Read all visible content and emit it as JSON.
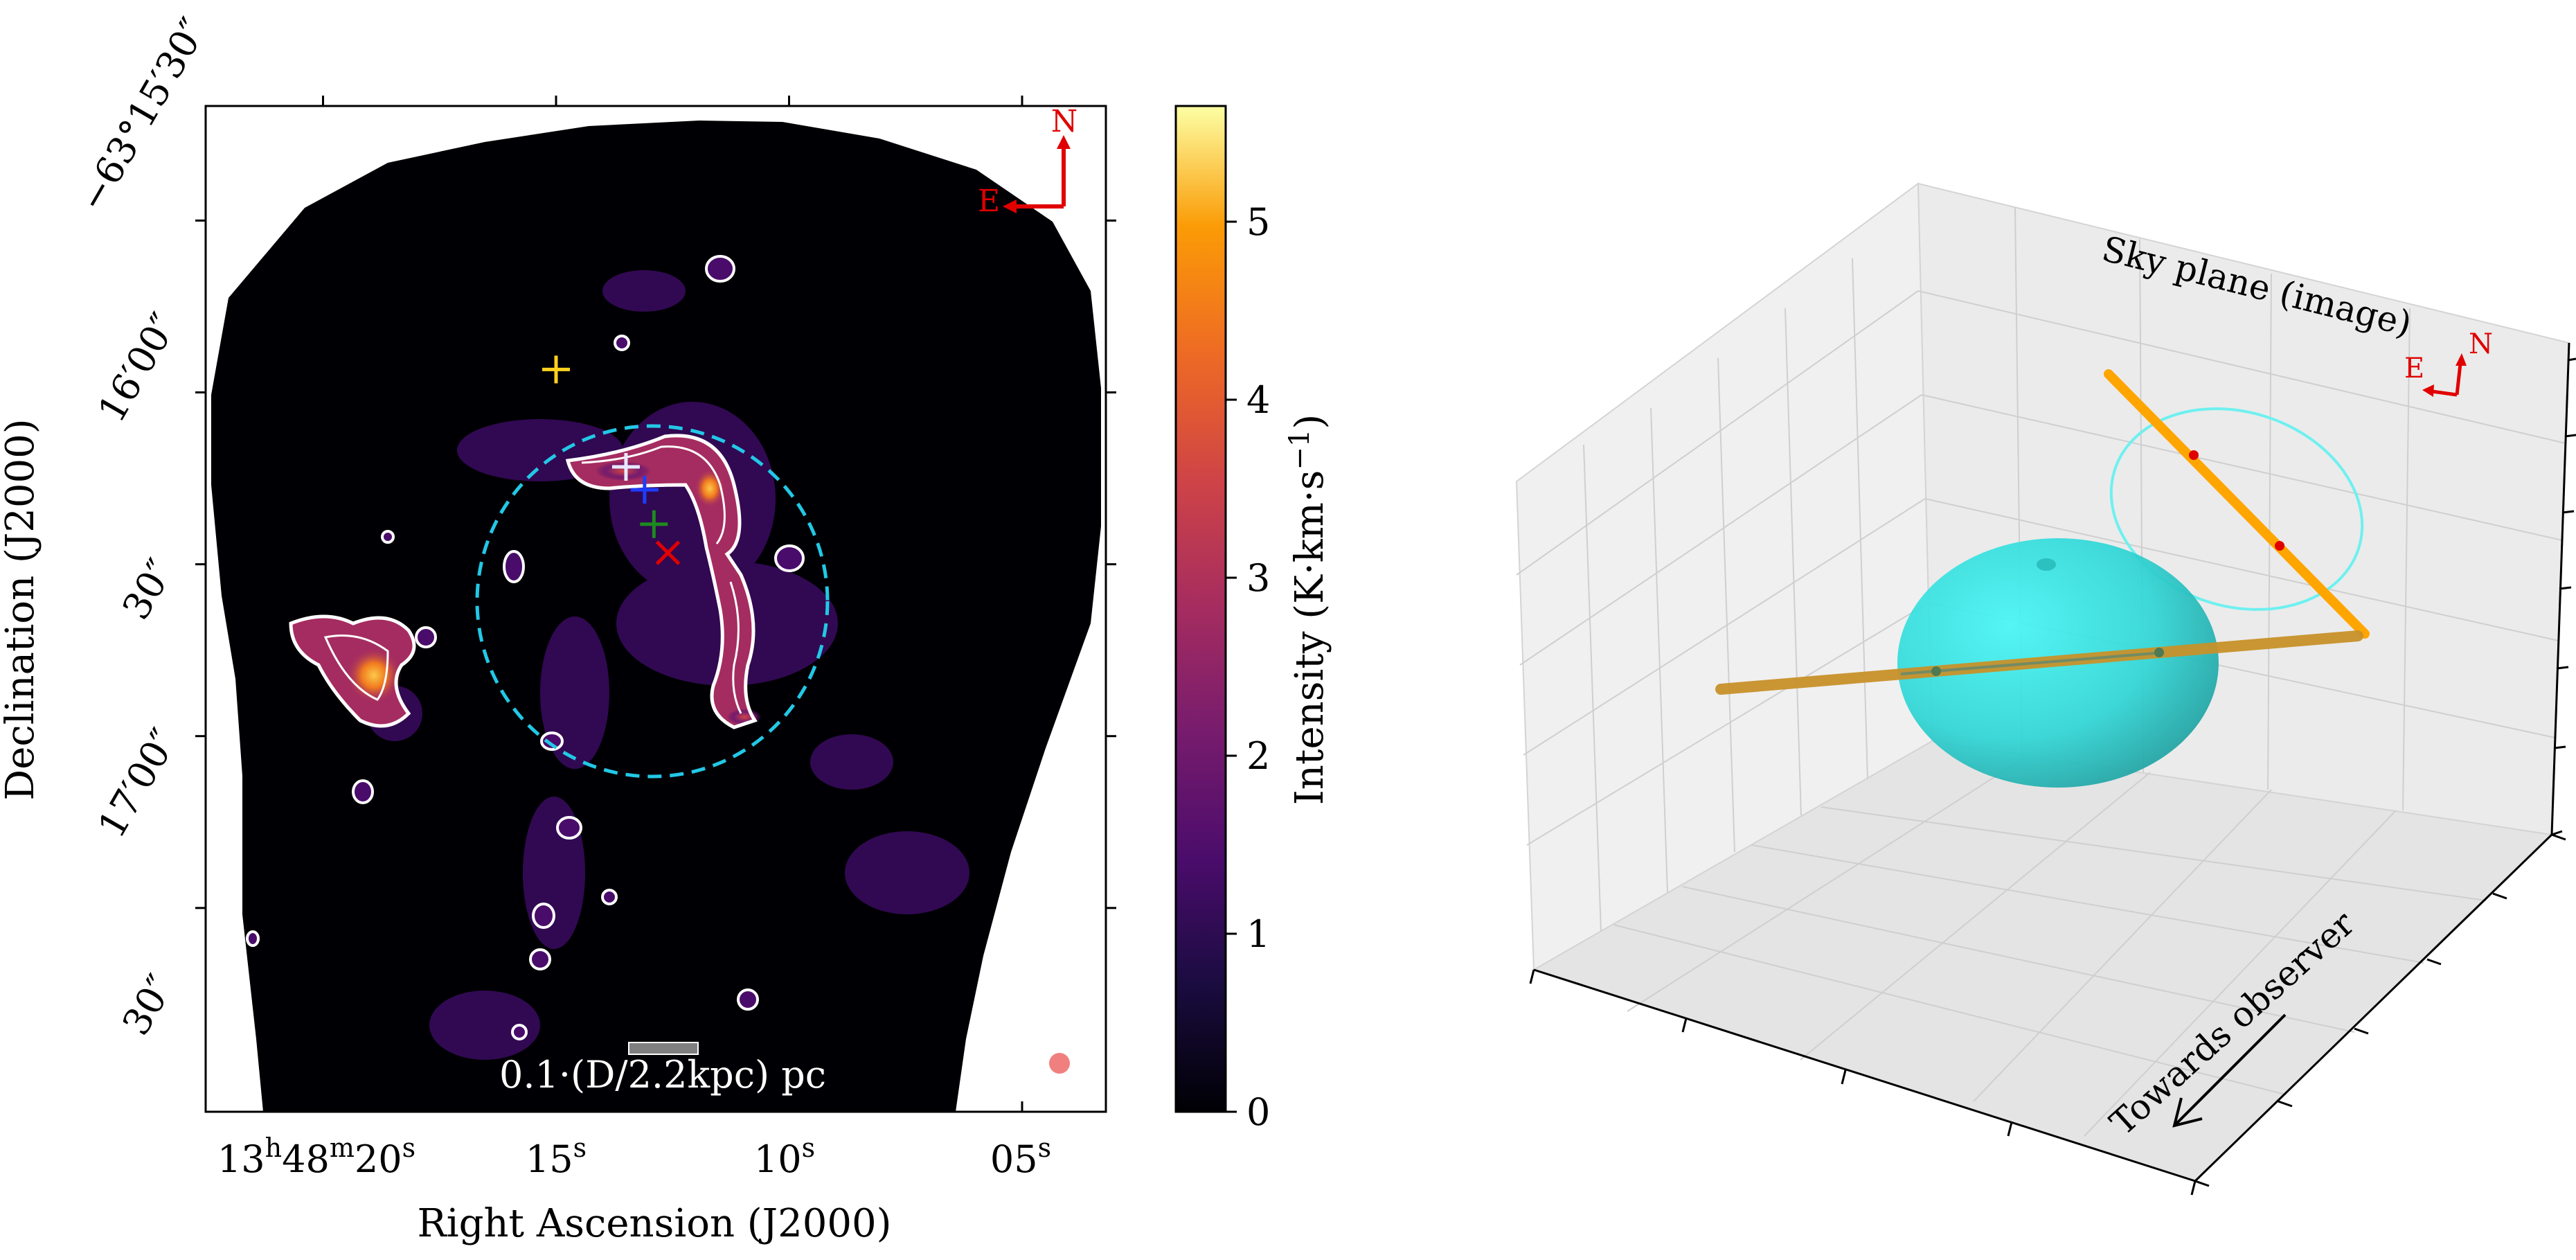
{
  "chart_data": [
    {
      "type": "heatmap",
      "xlabel": "Right Ascension (J2000)",
      "ylabel": "Declination (J2000)",
      "x_ticks": [
        {
          "pre": "13",
          "h": "h",
          "mid": "48",
          "m": "m",
          "end": "20",
          "s": "s"
        },
        {
          "pre": "15",
          "s": "s"
        },
        {
          "pre": "10",
          "s": "s"
        },
        {
          "pre": "05",
          "s": "s"
        }
      ],
      "x_tick_values_s": [
        20,
        15,
        10,
        5
      ],
      "y_ticks": [
        "−63°15′30″",
        "16′00″",
        "30″",
        "17′00″",
        "30″"
      ],
      "colorbar": {
        "label": "Intensity (K·km·s",
        "label_exp": "−1",
        "label_close": ")",
        "ticks": [
          "0",
          "1",
          "2",
          "3",
          "4",
          "5"
        ],
        "range": [
          0,
          5.65
        ],
        "colormap": "inferno"
      },
      "compass": {
        "north": "N",
        "east": "E"
      },
      "scale_bar": "0.1·(D/2.2kpc) pc",
      "circle_color": "#22c8e6",
      "contour_color": "#ffffff",
      "markers": [
        {
          "kind": "plus",
          "color": "#ffd21e",
          "ra_s": 15.0,
          "dec_off_s": 26
        },
        {
          "kind": "plus",
          "color": "#e8e8ff",
          "ra_s": 13.5,
          "dec_off_s": 43
        },
        {
          "kind": "plus",
          "color": "#1e3cff",
          "ra_s": 13.1,
          "dec_off_s": 47
        },
        {
          "kind": "plus",
          "color": "#1e8a1e",
          "ra_s": 12.9,
          "dec_off_s": 53
        },
        {
          "kind": "cross",
          "color": "#e00000",
          "ra_s": 12.6,
          "dec_off_s": 58
        }
      ]
    },
    {
      "type": "3d-diagram",
      "annotations": [
        "Sky plane (image)",
        "Towards observer"
      ],
      "compass": {
        "north": "N",
        "east": "E"
      },
      "colors": {
        "sphere": "#2ee6e6",
        "sky_ellipse": "#6ff0f0",
        "projected_rod": "#ffa500",
        "rod": "#c8922a",
        "points": "#e00000"
      }
    }
  ]
}
